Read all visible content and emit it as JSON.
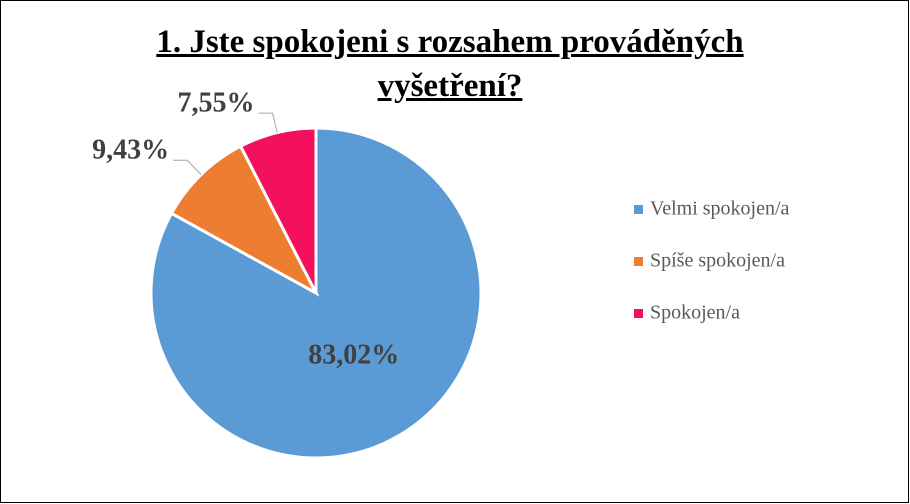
{
  "chart_data": {
    "type": "pie",
    "title": "1. Jste spokojeni s rozsahem prováděných vyšetření?",
    "categories": [
      "Velmi spokojen/a",
      "Spíše spokojen/a",
      "Spokojen/a"
    ],
    "values": [
      83.02,
      9.43,
      7.55
    ],
    "value_labels": [
      "83,02%",
      "9,43%",
      "7,55%"
    ],
    "colors": [
      "#5b9bd5",
      "#ed7d31",
      "#f2105f"
    ],
    "legend": "right"
  }
}
